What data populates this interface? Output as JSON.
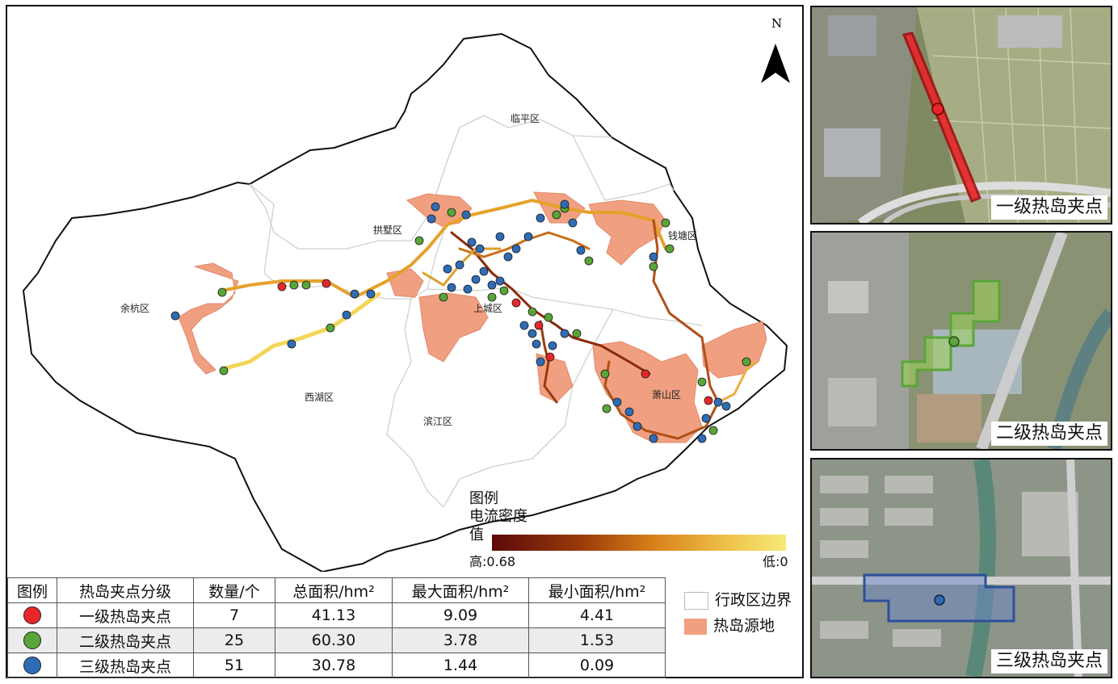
{
  "map": {
    "north_label": "N",
    "districts": {
      "linping": "临平区",
      "gongshu": "拱墅区",
      "qiantang": "钱塘区",
      "yuhang": "余杭区",
      "shangcheng": "上城区",
      "xihu": "西湖区",
      "binjiang": "滨江区",
      "xiaoshan": "萧山区"
    },
    "colors": {
      "level1": "#e8262a",
      "level2": "#5aa538",
      "level3": "#2f6cb5",
      "heat_source": "#f0a080",
      "boundary": "#cccccc",
      "current_high": "#5a0a0a",
      "current_low": "#f6ea7a"
    }
  },
  "legend": {
    "title": "图例",
    "current_title": "电流密度",
    "current_value_label": "值",
    "high_label": "高:0.68",
    "low_label": "低:0",
    "admin_boundary": "行政区边界",
    "heat_source": "热岛源地"
  },
  "table": {
    "headers": [
      "图例",
      "热岛夹点分级",
      "数量/个",
      "总面积/hm²",
      "最大面积/hm²",
      "最小面积/hm²"
    ],
    "rows": [
      {
        "level": "一级热岛夹点",
        "count": "7",
        "total": "41.13",
        "max": "9.09",
        "min": "4.41",
        "color": "#e8262a"
      },
      {
        "level": "二级热岛夹点",
        "count": "25",
        "total": "60.30",
        "max": "3.78",
        "min": "1.53",
        "color": "#5aa538"
      },
      {
        "level": "三级热岛夹点",
        "count": "51",
        "total": "30.78",
        "max": "1.44",
        "min": "0.09",
        "color": "#2f6cb5"
      }
    ]
  },
  "insets": [
    {
      "label": "一级热岛夹点",
      "color": "#e8262a"
    },
    {
      "label": "二级热岛夹点",
      "color": "#5aa538"
    },
    {
      "label": "三级热岛夹点",
      "color": "#2f6cb5"
    }
  ]
}
